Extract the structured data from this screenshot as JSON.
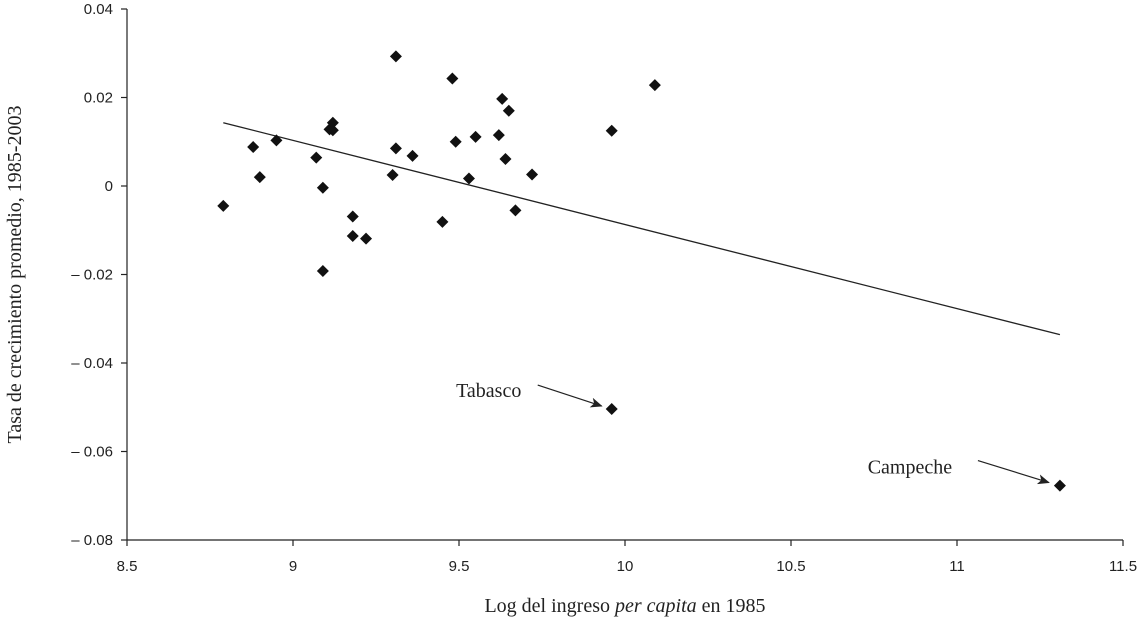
{
  "chart_data": {
    "type": "scatter",
    "title": "",
    "xlabel": {
      "prefix": "Log del ingreso ",
      "italic": "per capita",
      "suffix": " en 1985"
    },
    "ylabel": "Tasa de crecimiento promedio, 1985-2003",
    "xlim": [
      8.5,
      11.5
    ],
    "ylim": [
      -0.08,
      0.04
    ],
    "xticks": [
      8.5,
      9,
      9.5,
      10,
      10.5,
      11,
      11.5
    ],
    "xtick_labels": [
      "8.5",
      "9",
      "9.5",
      "10",
      "10.5",
      "11",
      "11.5"
    ],
    "yticks": [
      0.04,
      0.02,
      0,
      -0.02,
      -0.04,
      -0.06,
      -0.08
    ],
    "ytick_labels": [
      "0.04",
      "0.02",
      "0",
      "– 0.02",
      "– 0.04",
      "– 0.06",
      "– 0.08"
    ],
    "grid": false,
    "marker": "diamond",
    "points": [
      {
        "x": 8.79,
        "y": -0.0045
      },
      {
        "x": 8.88,
        "y": 0.0088
      },
      {
        "x": 8.9,
        "y": 0.002
      },
      {
        "x": 8.95,
        "y": 0.0103
      },
      {
        "x": 9.07,
        "y": 0.0064
      },
      {
        "x": 9.09,
        "y": -0.0004
      },
      {
        "x": 9.09,
        "y": -0.0192
      },
      {
        "x": 9.11,
        "y": 0.0128
      },
      {
        "x": 9.12,
        "y": 0.0126
      },
      {
        "x": 9.12,
        "y": 0.0143
      },
      {
        "x": 9.18,
        "y": -0.0069
      },
      {
        "x": 9.18,
        "y": -0.0113
      },
      {
        "x": 9.22,
        "y": -0.0119
      },
      {
        "x": 9.3,
        "y": 0.0025
      },
      {
        "x": 9.31,
        "y": 0.0085
      },
      {
        "x": 9.31,
        "y": 0.0293
      },
      {
        "x": 9.36,
        "y": 0.0068
      },
      {
        "x": 9.45,
        "y": -0.0081
      },
      {
        "x": 9.48,
        "y": 0.0243
      },
      {
        "x": 9.49,
        "y": 0.01
      },
      {
        "x": 9.53,
        "y": 0.0017
      },
      {
        "x": 9.55,
        "y": 0.0111
      },
      {
        "x": 9.62,
        "y": 0.0115
      },
      {
        "x": 9.63,
        "y": 0.0197
      },
      {
        "x": 9.64,
        "y": 0.0061
      },
      {
        "x": 9.65,
        "y": 0.017
      },
      {
        "x": 9.67,
        "y": -0.0055
      },
      {
        "x": 9.72,
        "y": 0.0026
      },
      {
        "x": 9.96,
        "y": 0.0125
      },
      {
        "x": 9.96,
        "y": -0.0504
      },
      {
        "x": 10.09,
        "y": 0.0228
      },
      {
        "x": 11.31,
        "y": -0.0677
      }
    ],
    "trendline": {
      "x": [
        8.79,
        11.31
      ],
      "y": [
        0.0143,
        -0.0336
      ]
    },
    "annotations": [
      {
        "text": "Tabasco",
        "x": 9.96,
        "y": -0.0504
      },
      {
        "text": "Campeche",
        "x": 11.31,
        "y": -0.0677
      }
    ]
  }
}
